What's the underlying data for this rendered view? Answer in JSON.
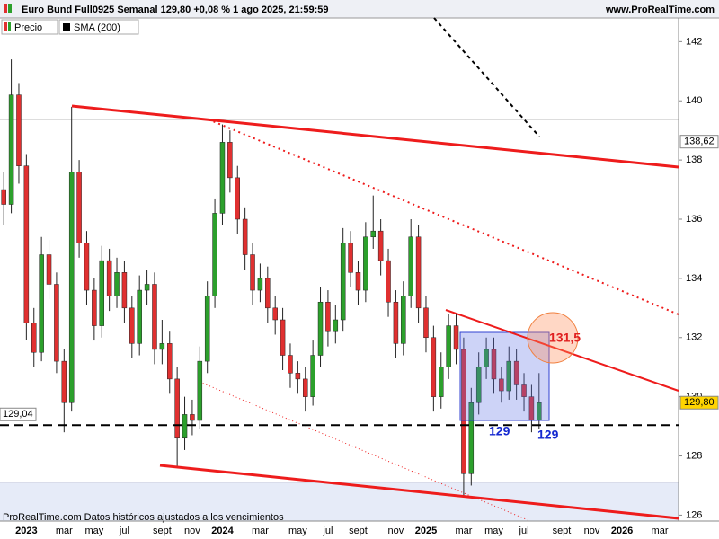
{
  "chart_data": {
    "type": "candlestick",
    "title": "Euro Bund Full0925 Semanal 129,80 +0,08 % 1 ago 2025, 21:59:59",
    "source": "www.ProRealTime.com",
    "legend_items": [
      "Precio",
      "SMA (200)"
    ],
    "footer": "ProRealTime.com  Datos históricos ajustados a los vencimientos",
    "annotations": [
      "131,5",
      "129",
      "129"
    ],
    "up_color": "#2ca02c",
    "down_color": "#e03030",
    "categories": [
      null,
      null,
      null,
      "2023",
      null,
      null,
      null,
      null,
      "mar",
      null,
      null,
      null,
      "may",
      null,
      null,
      null,
      "jul",
      null,
      null,
      null,
      null,
      "sept",
      null,
      null,
      null,
      "nov",
      null,
      null,
      null,
      "2024",
      null,
      null,
      null,
      null,
      "mar",
      null,
      null,
      null,
      null,
      "may",
      null,
      null,
      null,
      "jul",
      null,
      null,
      null,
      "sept",
      null,
      null,
      null,
      null,
      "nov",
      null,
      null,
      null,
      "2025",
      null,
      null,
      null,
      null,
      "mar",
      null,
      null,
      null,
      "may",
      null,
      null,
      null,
      "jul",
      null,
      null,
      null,
      null,
      "sept",
      null,
      null,
      null,
      "nov",
      null,
      null,
      null,
      "2026",
      null,
      null,
      null,
      null,
      "mar",
      null,
      null
    ],
    "open": [
      137.0,
      136.5,
      140.2,
      137.8,
      132.5,
      131.5,
      134.8,
      133.8,
      131.2,
      129.8,
      137.6,
      135.2,
      133.6,
      132.4,
      134.6,
      133.4,
      134.2,
      133.0,
      131.8,
      133.6,
      133.8,
      131.6,
      131.8,
      130.6,
      128.6,
      129.4,
      129.2,
      131.2,
      133.4,
      136.2,
      138.6,
      137.4,
      136.0,
      134.8,
      133.6,
      134.0,
      133.0,
      132.6,
      131.4,
      130.8,
      130.6,
      130.0,
      131.4,
      133.2,
      132.2,
      132.6,
      135.2,
      134.2,
      133.6,
      135.4,
      135.6,
      134.6,
      133.2,
      131.8,
      133.4,
      135.4,
      133.0,
      132.0,
      130.0,
      131.0,
      132.4,
      131.6,
      127.4,
      129.8,
      131.0,
      131.6,
      130.6,
      130.2,
      131.2,
      130.4,
      130.0,
      129.2,
      null,
      null,
      null,
      null,
      null,
      null,
      null,
      null,
      null,
      null,
      null,
      null,
      null,
      null,
      null,
      null,
      null,
      null
    ],
    "high": [
      137.6,
      141.4,
      140.6,
      138.2,
      133.0,
      135.4,
      135.3,
      134.2,
      131.6,
      139.8,
      138.0,
      135.6,
      134.0,
      135.1,
      135.0,
      134.7,
      134.6,
      133.4,
      134.1,
      134.3,
      134.2,
      132.6,
      132.2,
      131.0,
      130.0,
      129.9,
      131.7,
      133.9,
      136.7,
      139.2,
      139.0,
      137.8,
      136.4,
      135.2,
      134.5,
      134.4,
      133.4,
      133.0,
      131.8,
      131.2,
      131.0,
      131.9,
      133.7,
      133.6,
      133.1,
      135.7,
      135.6,
      134.6,
      135.9,
      136.8,
      136.0,
      135.0,
      133.6,
      133.9,
      136.0,
      135.8,
      133.4,
      132.4,
      131.5,
      132.8,
      132.8,
      132.0,
      130.3,
      131.5,
      132.0,
      132.0,
      131.0,
      131.7,
      131.6,
      130.8,
      130.4,
      130.8,
      null,
      null,
      null,
      null,
      null,
      null,
      null,
      null,
      null,
      null,
      null,
      null,
      null,
      null,
      null,
      null,
      null,
      null
    ],
    "low": [
      135.8,
      136.2,
      137.2,
      131.9,
      131.0,
      131.2,
      133.3,
      130.8,
      128.8,
      129.5,
      134.7,
      133.1,
      131.9,
      132.0,
      132.9,
      133.0,
      132.5,
      131.3,
      131.4,
      133.1,
      131.1,
      131.1,
      130.1,
      127.6,
      128.2,
      128.7,
      128.9,
      130.8,
      133.0,
      135.8,
      136.9,
      135.5,
      134.3,
      133.1,
      133.2,
      132.5,
      132.1,
      130.9,
      130.3,
      130.1,
      129.5,
      129.7,
      131.0,
      131.7,
      131.8,
      132.2,
      133.7,
      133.1,
      133.2,
      135.0,
      134.1,
      132.7,
      131.3,
      131.4,
      133.0,
      132.5,
      131.5,
      129.5,
      129.6,
      130.6,
      131.1,
      126.6,
      127.0,
      129.4,
      130.6,
      130.1,
      129.8,
      129.9,
      129.9,
      129.5,
      128.8,
      128.9,
      null,
      null,
      null,
      null,
      null,
      null,
      null,
      null,
      null,
      null,
      null,
      null,
      null,
      null,
      null,
      null,
      null,
      null
    ],
    "close": [
      136.5,
      140.2,
      137.8,
      132.5,
      131.5,
      134.8,
      133.8,
      131.2,
      129.8,
      137.6,
      135.2,
      133.6,
      132.4,
      134.6,
      133.4,
      134.2,
      133.0,
      131.8,
      133.6,
      133.8,
      131.6,
      131.8,
      130.6,
      128.6,
      129.4,
      129.2,
      131.2,
      133.4,
      136.2,
      138.6,
      137.4,
      136.0,
      134.8,
      133.6,
      134.0,
      133.0,
      132.6,
      131.4,
      130.8,
      130.6,
      130.0,
      131.4,
      133.2,
      132.2,
      132.6,
      135.2,
      134.2,
      133.6,
      135.4,
      135.6,
      134.6,
      133.2,
      131.8,
      133.4,
      135.4,
      133.0,
      132.0,
      130.0,
      131.0,
      132.4,
      131.6,
      127.4,
      129.8,
      131.0,
      131.6,
      130.6,
      130.2,
      131.2,
      130.4,
      130.0,
      129.2,
      129.8,
      null,
      null,
      null,
      null,
      null,
      null,
      null,
      null,
      null,
      null,
      null,
      null,
      null,
      null,
      null,
      null,
      null,
      null
    ],
    "ylim": [
      125.8,
      142.8
    ],
    "yticks": [
      126,
      128,
      130,
      132,
      134,
      136,
      138,
      140,
      142
    ],
    "price_labels": [
      {
        "value": 138.62,
        "label": "138,62"
      },
      {
        "value": 129.8,
        "label": "129,80"
      }
    ],
    "level": {
      "value": 129.04,
      "label": "129,04"
    },
    "grid": false
  }
}
